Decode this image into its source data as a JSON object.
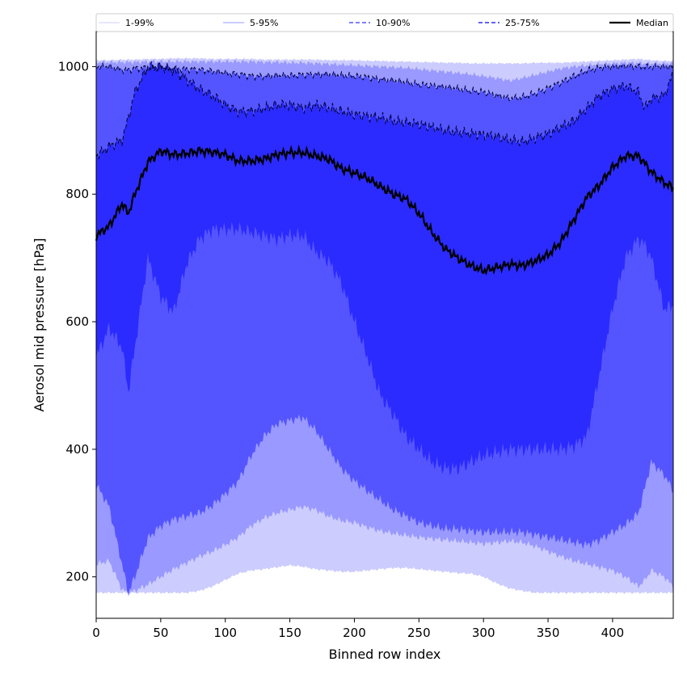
{
  "chart_data": {
    "type": "area",
    "xlabel": "Binned row index",
    "ylabel": "Aerosol mid pressure [hPa]",
    "xlim": [
      0,
      447
    ],
    "ylim": [
      135,
      1055
    ],
    "x_ticks": [
      0,
      50,
      100,
      150,
      200,
      250,
      300,
      350,
      400
    ],
    "y_ticks": [
      200,
      400,
      600,
      800,
      1000
    ],
    "grid": false,
    "legend_position": "top",
    "x": [
      0,
      10,
      20,
      25,
      30,
      40,
      50,
      60,
      70,
      80,
      90,
      100,
      110,
      120,
      130,
      140,
      150,
      160,
      170,
      180,
      190,
      200,
      210,
      220,
      230,
      240,
      250,
      260,
      270,
      280,
      290,
      300,
      310,
      320,
      330,
      340,
      350,
      360,
      370,
      380,
      390,
      400,
      410,
      420,
      425,
      430,
      440,
      447
    ],
    "bands": [
      {
        "name": "1-99%",
        "color": "#ccccff",
        "line_style": "solid",
        "lower": [
          175,
          175,
          175,
          175,
          175,
          175,
          175,
          175,
          175,
          178,
          185,
          195,
          205,
          210,
          212,
          215,
          218,
          216,
          212,
          210,
          208,
          208,
          210,
          212,
          214,
          214,
          212,
          210,
          208,
          206,
          205,
          200,
          190,
          182,
          178,
          175,
          175,
          175,
          175,
          175,
          175,
          175,
          175,
          175,
          175,
          175,
          175,
          175
        ],
        "upper": [
          1010,
          1010,
          1011,
          1011,
          1011,
          1012,
          1012,
          1013,
          1013,
          1013,
          1012,
          1012,
          1012,
          1012,
          1011,
          1011,
          1011,
          1011,
          1011,
          1010,
          1010,
          1010,
          1009,
          1009,
          1008,
          1008,
          1007,
          1007,
          1006,
          1006,
          1005,
          1005,
          1005,
          1005,
          1005,
          1006,
          1006,
          1006,
          1007,
          1008,
          1009,
          1010,
          1011,
          1012,
          1011,
          1010,
          1009,
          1009
        ]
      },
      {
        "name": "5-95%",
        "color": "#9999ff",
        "line_style": "solid",
        "lower": [
          220,
          225,
          180,
          175,
          178,
          188,
          200,
          212,
          222,
          232,
          240,
          250,
          262,
          280,
          292,
          300,
          305,
          310,
          305,
          295,
          288,
          285,
          278,
          272,
          268,
          265,
          262,
          260,
          258,
          256,
          254,
          252,
          254,
          256,
          254,
          248,
          240,
          232,
          225,
          220,
          215,
          210,
          200,
          185,
          195,
          210,
          200,
          185
        ],
        "upper": [
          1007,
          1007,
          1007,
          1007,
          1007,
          1008,
          1008,
          1008,
          1008,
          1008,
          1008,
          1008,
          1008,
          1008,
          1007,
          1007,
          1006,
          1006,
          1005,
          1004,
          1003,
          1002,
          1001,
          1000,
          999,
          998,
          996,
          994,
          992,
          990,
          988,
          985,
          982,
          978,
          982,
          987,
          992,
          997,
          1000,
          1002,
          1004,
          1005,
          1006,
          1006,
          1005,
          1005,
          1005,
          1005
        ]
      },
      {
        "name": "10-90%",
        "color": "#5555ff",
        "line_style": "dashed",
        "lower": [
          345,
          310,
          220,
          175,
          200,
          260,
          280,
          290,
          295,
          300,
          312,
          330,
          350,
          390,
          420,
          440,
          445,
          450,
          430,
          400,
          370,
          350,
          335,
          320,
          305,
          295,
          285,
          280,
          275,
          275,
          272,
          270,
          270,
          270,
          270,
          266,
          262,
          258,
          254,
          250,
          258,
          270,
          282,
          300,
          340,
          380,
          360,
          335
        ],
        "upper": [
          1000,
          1000,
          995,
          995,
          997,
          998,
          998,
          997,
          996,
          995,
          993,
          990,
          988,
          985,
          985,
          986,
          986,
          987,
          988,
          988,
          986,
          985,
          983,
          980,
          978,
          975,
          972,
          970,
          968,
          965,
          962,
          960,
          955,
          950,
          952,
          958,
          966,
          975,
          985,
          994,
          998,
          1000,
          1001,
          1000,
          1000,
          1000,
          1000,
          1000
        ]
      },
      {
        "name": "25-75%",
        "color": "#2b2bff",
        "line_style": "dashed",
        "lower": [
          545,
          590,
          560,
          490,
          560,
          700,
          640,
          615,
          690,
          730,
          745,
          745,
          745,
          740,
          735,
          730,
          735,
          735,
          710,
          695,
          660,
          600,
          545,
          485,
          455,
          420,
          400,
          380,
          370,
          370,
          380,
          390,
          395,
          400,
          400,
          400,
          400,
          400,
          405,
          420,
          520,
          620,
          700,
          730,
          720,
          700,
          620,
          625
        ],
        "upper": [
          860,
          875,
          885,
          920,
          960,
          1000,
          1000,
          995,
          980,
          965,
          955,
          940,
          930,
          930,
          935,
          940,
          940,
          935,
          940,
          935,
          930,
          925,
          922,
          920,
          915,
          912,
          910,
          905,
          900,
          897,
          895,
          893,
          890,
          885,
          882,
          888,
          895,
          905,
          915,
          935,
          955,
          965,
          970,
          960,
          935,
          950,
          955,
          990
        ]
      }
    ],
    "series": [
      {
        "name": "Median",
        "color": "#000000",
        "values": [
          735,
          750,
          785,
          770,
          800,
          850,
          868,
          862,
          864,
          868,
          866,
          862,
          852,
          852,
          855,
          862,
          865,
          865,
          860,
          855,
          840,
          833,
          825,
          812,
          800,
          792,
          770,
          740,
          715,
          700,
          688,
          680,
          685,
          690,
          688,
          695,
          705,
          725,
          760,
          795,
          815,
          842,
          860,
          860,
          848,
          835,
          818,
          810
        ]
      }
    ],
    "legend": [
      "1-99%",
      "5-95%",
      "10-90%",
      "25-75%",
      "Median"
    ]
  }
}
